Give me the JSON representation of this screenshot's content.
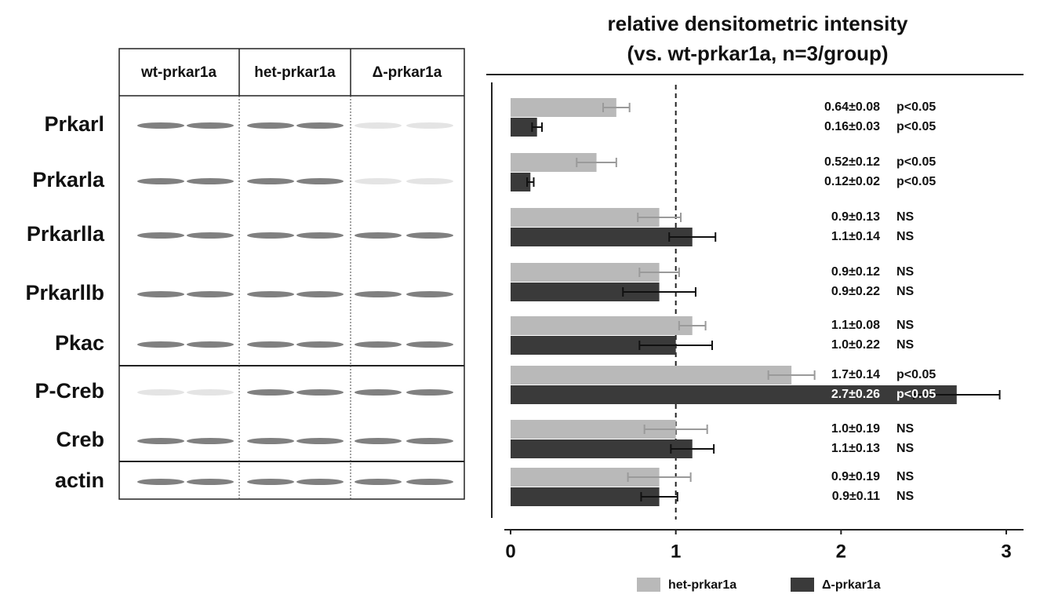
{
  "chart_data": {
    "type": "bar",
    "orientation": "horizontal",
    "title": "relative densitometric intensity",
    "subtitle": "(vs. wt-prkar1a, n=3/group)",
    "categories": [
      "Prkarl",
      "Prkarla",
      "Prkarlla",
      "Prkarllb",
      "Pkac",
      "P-Creb",
      "Creb",
      "actin"
    ],
    "series": [
      {
        "name": "het-prkar1a",
        "color": "#b9b9b9",
        "values": [
          0.64,
          0.52,
          0.9,
          0.9,
          1.1,
          1.7,
          1.0,
          0.9
        ],
        "errors": [
          0.08,
          0.12,
          0.13,
          0.12,
          0.08,
          0.14,
          0.19,
          0.19
        ],
        "value_labels": [
          "0.64±0.08",
          "0.52±0.12",
          "0.9±0.13",
          "0.9±0.12",
          "1.1±0.08",
          "1.7±0.14",
          "1.0±0.19",
          "0.9±0.19"
        ],
        "significance": [
          "p<0.05",
          "p<0.05",
          "NS",
          "NS",
          "NS",
          "p<0.05",
          "NS",
          "NS"
        ]
      },
      {
        "name": "Δ-prkar1a",
        "color": "#3a3a3a",
        "values": [
          0.16,
          0.12,
          1.1,
          0.9,
          1.0,
          2.7,
          1.1,
          0.9
        ],
        "errors": [
          0.03,
          0.02,
          0.14,
          0.22,
          0.22,
          0.26,
          0.13,
          0.11
        ],
        "value_labels": [
          "0.16±0.03",
          "0.12±0.02",
          "1.1±0.14",
          "0.9±0.22",
          "1.0±0.22",
          "2.7±0.26",
          "1.1±0.13",
          "0.9±0.11"
        ],
        "significance": [
          "p<0.05",
          "p<0.05",
          "NS",
          "NS",
          "NS",
          "p<0.05",
          "NS",
          "NS"
        ]
      }
    ],
    "xlim": [
      0,
      3
    ],
    "xticks": [
      0,
      1,
      2,
      3
    ],
    "reference_line": 1
  },
  "blot": {
    "columns": [
      "wt-prkar1a",
      "het-prkar1a",
      "Δ-prkar1a"
    ]
  }
}
